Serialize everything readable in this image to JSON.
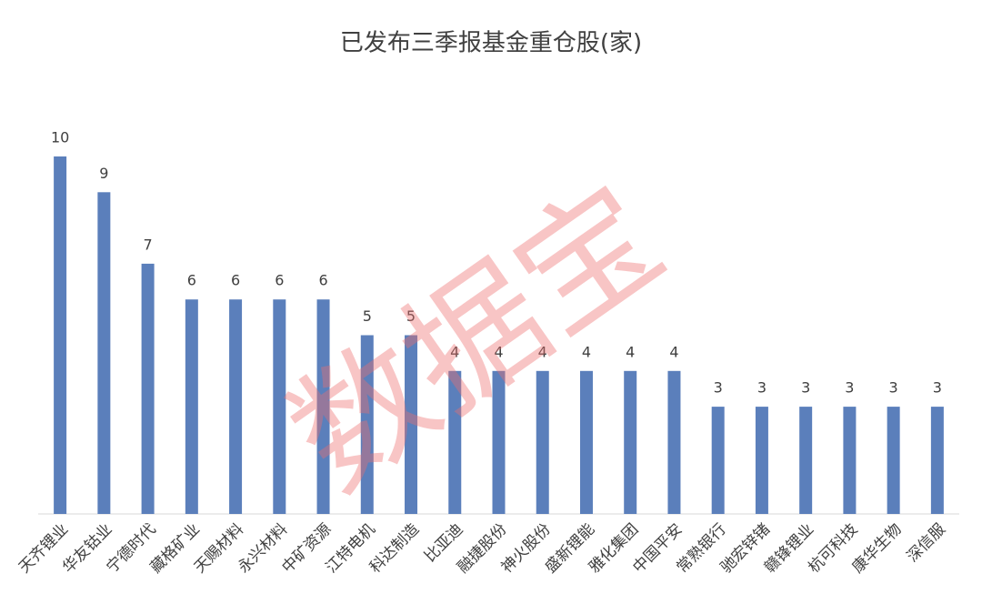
{
  "chart_data": {
    "type": "bar",
    "title": "已发布三季报基金重仓股(家)",
    "categories": [
      "天齐锂业",
      "华友钴业",
      "宁德时代",
      "藏格矿业",
      "天赐材料",
      "永兴材料",
      "中矿资源",
      "江特电机",
      "科达制造",
      "比亚迪",
      "融捷股份",
      "神火股份",
      "盛新锂能",
      "雅化集团",
      "中国平安",
      "常熟银行",
      "驰宏锌锗",
      "赣锋锂业",
      "杭可科技",
      "康华生物",
      "深信服"
    ],
    "values": [
      10,
      9,
      7,
      6,
      6,
      6,
      6,
      5,
      5,
      4,
      4,
      4,
      4,
      4,
      4,
      3,
      3,
      3,
      3,
      3,
      3
    ],
    "color": "#5b7fbb",
    "watermark": "数据宝"
  }
}
